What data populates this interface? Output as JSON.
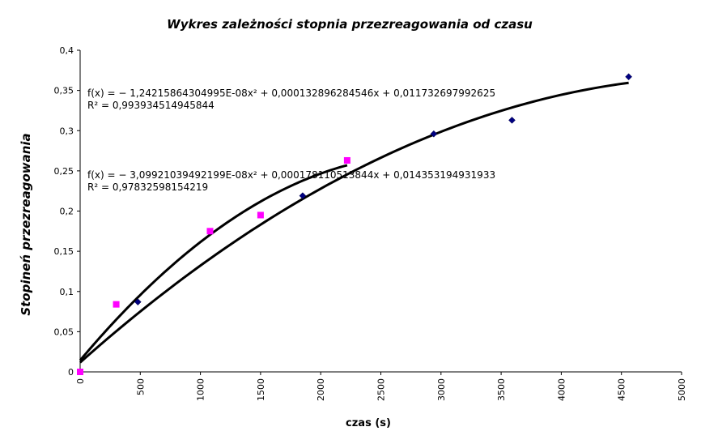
{
  "chart_data": {
    "type": "scatter",
    "title": "Wykres zależności stopnia przezreagowania od czasu",
    "xlabel": "czas (s)",
    "ylabel": "Stopineń przezreagowania",
    "xlim": [
      0,
      5000
    ],
    "ylim": [
      0,
      0.4
    ],
    "x_ticks": [
      "0",
      "500",
      "1000",
      "1500",
      "2000",
      "2500",
      "3000",
      "3500",
      "4000",
      "4500",
      "5000"
    ],
    "y_ticks": [
      "0",
      "0,05",
      "0,1",
      "0,15",
      "0,2",
      "0,25",
      "0,3",
      "0,35",
      "0,4"
    ],
    "grid": false,
    "legend": "none",
    "series": [
      {
        "marker": "diamond",
        "color": "#000080",
        "x": [
          0,
          480,
          1850,
          2940,
          3590,
          4560
        ],
        "y": [
          0,
          0.087,
          0.219,
          0.296,
          0.313,
          0.367
        ],
        "trendline": {
          "a": -1.24215864304995e-08,
          "b": 0.000132896284546,
          "c": 0.011732697992625,
          "x_range": [
            0,
            4560
          ]
        }
      },
      {
        "marker": "square",
        "color": "#ff00ff",
        "x": [
          0,
          300,
          1080,
          1500,
          2220
        ],
        "y": [
          0,
          0.084,
          0.175,
          0.195,
          0.263
        ],
        "trendline": {
          "a": -3.09921039492199e-08,
          "b": 0.000178110513844,
          "c": 0.014353194931933,
          "x_range": [
            0,
            2220
          ]
        }
      }
    ],
    "annotations": [
      {
        "equation": "f(x) = − 1,24215864304995E-08x² + 0,000132896284546x + 0,011732697992625",
        "r2": "R² = 0,993934514945844"
      },
      {
        "equation": "f(x) = − 3,09921039492199E-08x² + 0,000178110513844x + 0,014353194931933",
        "r2": "R² = 0,97832598154219"
      }
    ]
  }
}
